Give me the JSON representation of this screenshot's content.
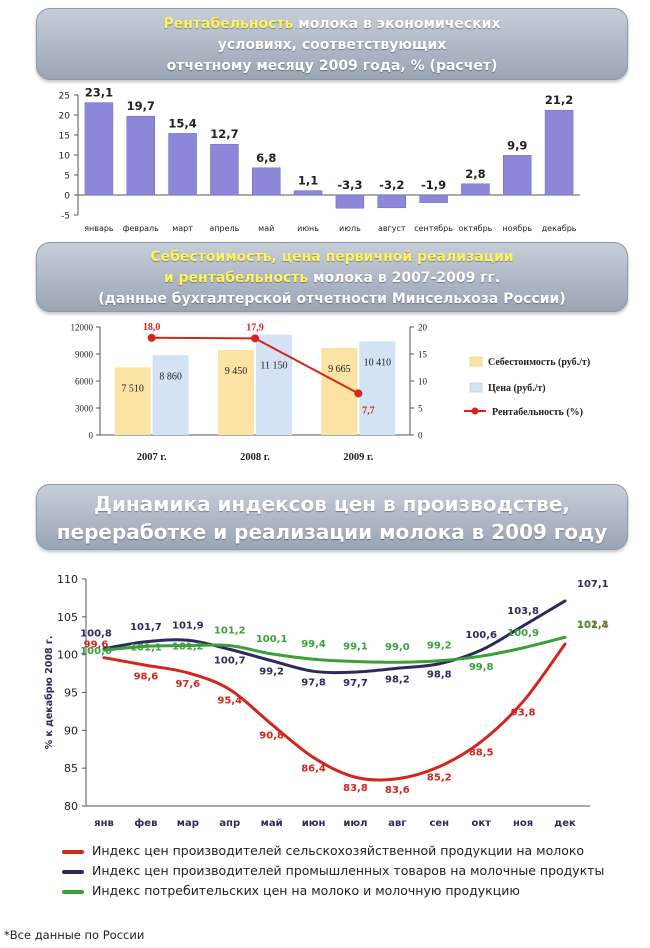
{
  "chart_data": [
    {
      "type": "bar",
      "title_highlight": "Рентабельность",
      "title_lines": [
        " молока в экономических",
        "условиях, соответствующих",
        "отчетному месяцу 2009 года, % (расчет)"
      ],
      "categories": [
        "январь",
        "февраль",
        "март",
        "апрель",
        "май",
        "июнь",
        "июль",
        "август",
        "сентябрь",
        "октябрь",
        "ноябрь",
        "декабрь"
      ],
      "values": [
        23.1,
        19.7,
        15.4,
        12.7,
        6.8,
        1.1,
        -3.3,
        -3.2,
        -1.9,
        2.8,
        9.9,
        21.2
      ],
      "value_labels": [
        "23,1",
        "19,7",
        "15,4",
        "12,7",
        "6,8",
        "1,1",
        "-3,3",
        "-3,2",
        "-1,9",
        "2,8",
        "9,9",
        "21,2"
      ],
      "yticks": [
        -5,
        0,
        5,
        10,
        15,
        20,
        25
      ],
      "ylim": [
        -5,
        25
      ],
      "color": "#8c87d9"
    },
    {
      "type": "bar",
      "title_lines_highlight": [
        "Себестоимость, цена первичной реализации",
        "и рентабельность"
      ],
      "title_rest_line2": " молока в 2007-2009 гг.",
      "title_line3": "(данные бухгалтерской отчетности Минсельхоза России)",
      "categories": [
        "2007 г.",
        "2008 г.",
        "2009 г."
      ],
      "series": [
        {
          "name": "Себестоимость (руб./т)",
          "values": [
            7510,
            9450,
            9665
          ],
          "labels": [
            "7 510",
            "9 450",
            "9 665"
          ],
          "color": "#fbe3a3"
        },
        {
          "name": "Цена (руб./т)",
          "values": [
            8860,
            11150,
            10410
          ],
          "labels": [
            "8 860",
            "11 150",
            "10 410"
          ],
          "color": "#d3e3f4"
        },
        {
          "name": "Рентабельность (%)",
          "values": [
            18.0,
            17.9,
            7.7
          ],
          "labels": [
            "18,0",
            "17,9",
            "7,7"
          ],
          "color": "#d2261c",
          "axis": "right"
        }
      ],
      "yticks_left": [
        0,
        3000,
        6000,
        9000,
        12000
      ],
      "yticks_left_labels": [
        "0",
        "3000",
        "6000",
        "9000",
        "12000"
      ],
      "ylim_left": [
        0,
        12000
      ],
      "yticks_right": [
        0,
        5,
        10,
        15,
        20
      ],
      "ylim_right": [
        0,
        20
      ],
      "legend_placement": "right"
    },
    {
      "type": "line",
      "title_lines": [
        "Динамика индексов цен в производстве,",
        "переработке и реализации молока в 2009 году"
      ],
      "categories": [
        "янв",
        "фев",
        "мар",
        "апр",
        "май",
        "июн",
        "июл",
        "авг",
        "сен",
        "окт",
        "ноя",
        "дек"
      ],
      "ylabel": "% к декабрю 2008 г.",
      "yticks": [
        80,
        85,
        90,
        95,
        100,
        105,
        110
      ],
      "ylim": [
        80,
        110
      ],
      "series": [
        {
          "name": "Индекс цен производителей сельскохозяйственной продукции на молоко",
          "color": "#d2261c",
          "values": [
            99.6,
            98.6,
            97.6,
            95.4,
            90.8,
            86.4,
            83.8,
            83.6,
            85.2,
            88.5,
            93.8,
            101.4
          ],
          "labels": [
            "99,6",
            "98,6",
            "97,6",
            "95,4",
            "90,8",
            "86,4",
            "83,8",
            "83,6",
            "85,2",
            "88,5",
            "93,8",
            "101,4"
          ]
        },
        {
          "name": "Индекс цен производителей промышленных товаров на молочные продукты",
          "color": "#2d2b5e",
          "values": [
            100.8,
            101.7,
            101.9,
            100.7,
            99.2,
            97.8,
            97.7,
            98.2,
            98.8,
            100.6,
            103.8,
            107.1
          ],
          "labels": [
            "100,8",
            "101,7",
            "101,9",
            "100,7",
            "99,2",
            "97,8",
            "97,7",
            "98,2",
            "98,8",
            "100,6",
            "103,8",
            "107,1"
          ]
        },
        {
          "name": "Индекс потребительских цен на молоко и молочную продукцию",
          "color": "#3aa03a",
          "values": [
            100.6,
            101.1,
            101.2,
            101.2,
            100.1,
            99.4,
            99.1,
            99.0,
            99.2,
            99.8,
            100.9,
            102.3
          ],
          "labels": [
            "100,6",
            "101,1",
            "101,2",
            "101,2",
            "100,1",
            "99,4",
            "99,1",
            "99,0",
            "99,2",
            "99,8",
            "100,9",
            "102,3"
          ]
        }
      ],
      "legend_placement": "bottom"
    }
  ],
  "footnote": "*Все данные по России"
}
